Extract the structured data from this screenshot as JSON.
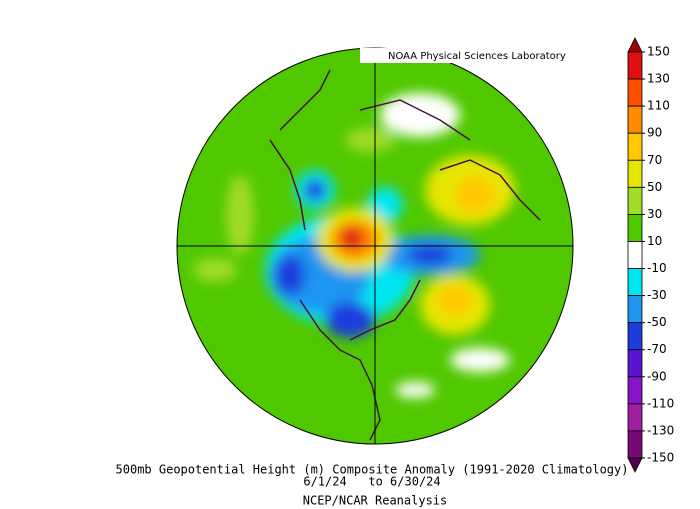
{
  "header": {
    "label": "NOAA Physical Sciences Laboratory"
  },
  "caption": {
    "title": "500mb Geopotential Height (m) Composite Anomaly (1991-2020 Climatology)",
    "dates": "6/1/24   to 6/30/24",
    "source": "NCEP/NCAR Reanalysis"
  },
  "colorbar": {
    "ticks": [
      150,
      130,
      110,
      90,
      70,
      50,
      30,
      10,
      -10,
      -30,
      -50,
      -70,
      -90,
      -110,
      -130,
      -150
    ],
    "colors": [
      "#a00000",
      "#e01010",
      "#ff5000",
      "#ff8c00",
      "#ffc800",
      "#e6e600",
      "#a0dc28",
      "#50c800",
      "#ffffff",
      "#00e6f0",
      "#1e96f0",
      "#1e3cdc",
      "#5a14d2",
      "#8c14c8",
      "#a01ea0",
      "#780a78",
      "#500050"
    ]
  }
}
